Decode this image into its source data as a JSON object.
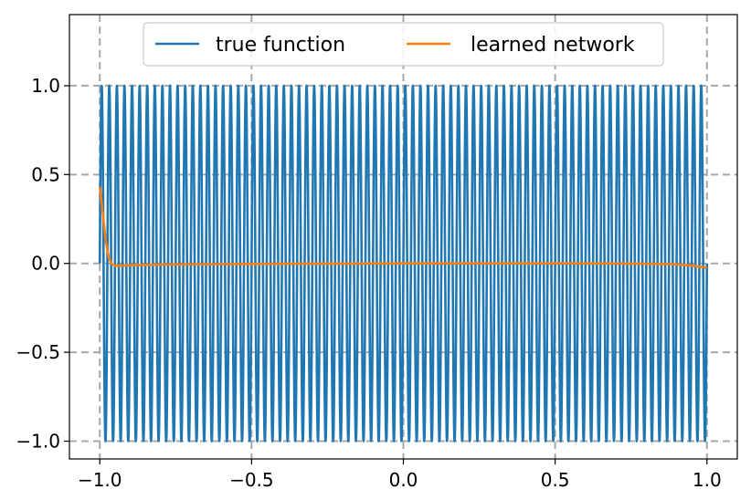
{
  "chart_data": {
    "type": "line",
    "title": "",
    "xlabel": "",
    "ylabel": "",
    "xlim": [
      -1.1,
      1.1
    ],
    "ylim": [
      -1.1,
      1.4
    ],
    "grid": true,
    "grid_style": "dashed",
    "legend_position": "upper center",
    "legend_columns": 2,
    "x_ticks": [
      -1.0,
      -0.5,
      0.0,
      0.5,
      1.0
    ],
    "x_tick_labels": [
      "−1.0",
      "−0.5",
      "0.0",
      "0.5",
      "1.0"
    ],
    "y_ticks": [
      -1.0,
      -0.5,
      0.0,
      0.5,
      1.0
    ],
    "y_tick_labels": [
      "−1.0",
      "−0.5",
      "0.0",
      "0.5",
      "1.0"
    ],
    "series": [
      {
        "name": "true function",
        "color": "#1f77b4",
        "function": "sin(2*pi*f*(x+1))",
        "frequency": 40,
        "x_range": [
          -1.0,
          1.0
        ]
      },
      {
        "name": "learned network",
        "color": "#ff7f0e",
        "x": [
          -1.0,
          -0.99,
          -0.98,
          -0.97,
          -0.96,
          -0.95,
          -0.93,
          -0.9,
          -0.8,
          -0.6,
          -0.4,
          -0.2,
          0.0,
          0.2,
          0.4,
          0.6,
          0.8,
          0.9,
          0.95,
          1.0
        ],
        "y": [
          0.43,
          0.28,
          0.12,
          0.03,
          -0.005,
          -0.012,
          -0.012,
          -0.01,
          -0.006,
          -0.004,
          -0.002,
          -0.001,
          0.0,
          0.0,
          0.0,
          0.0,
          -0.002,
          -0.005,
          -0.012,
          -0.025
        ]
      }
    ]
  }
}
